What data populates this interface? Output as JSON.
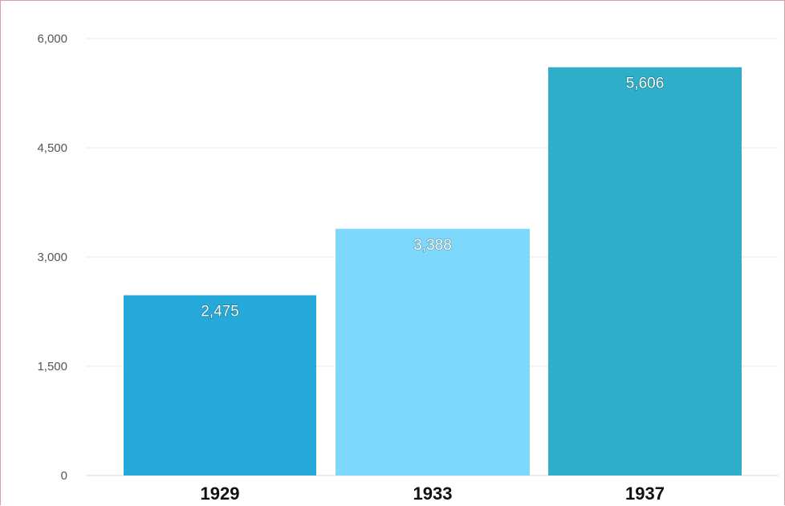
{
  "chart_data": {
    "type": "bar",
    "title": "",
    "xlabel": "",
    "ylabel": "",
    "categories": [
      "1929",
      "1933",
      "1937"
    ],
    "values": [
      2475,
      3388,
      5606
    ],
    "value_labels": [
      "2,475",
      "3,388",
      "5,606"
    ],
    "colors": [
      "#24a9d9",
      "#7dd8fb",
      "#2eaec8"
    ],
    "ylim": [
      0,
      6000
    ],
    "yticks": [
      0,
      1500,
      3000,
      4500,
      6000
    ],
    "ytick_labels": [
      "0",
      "1,500",
      "3,000",
      "4,500",
      "6,000"
    ],
    "grid": true,
    "legend": "none"
  }
}
